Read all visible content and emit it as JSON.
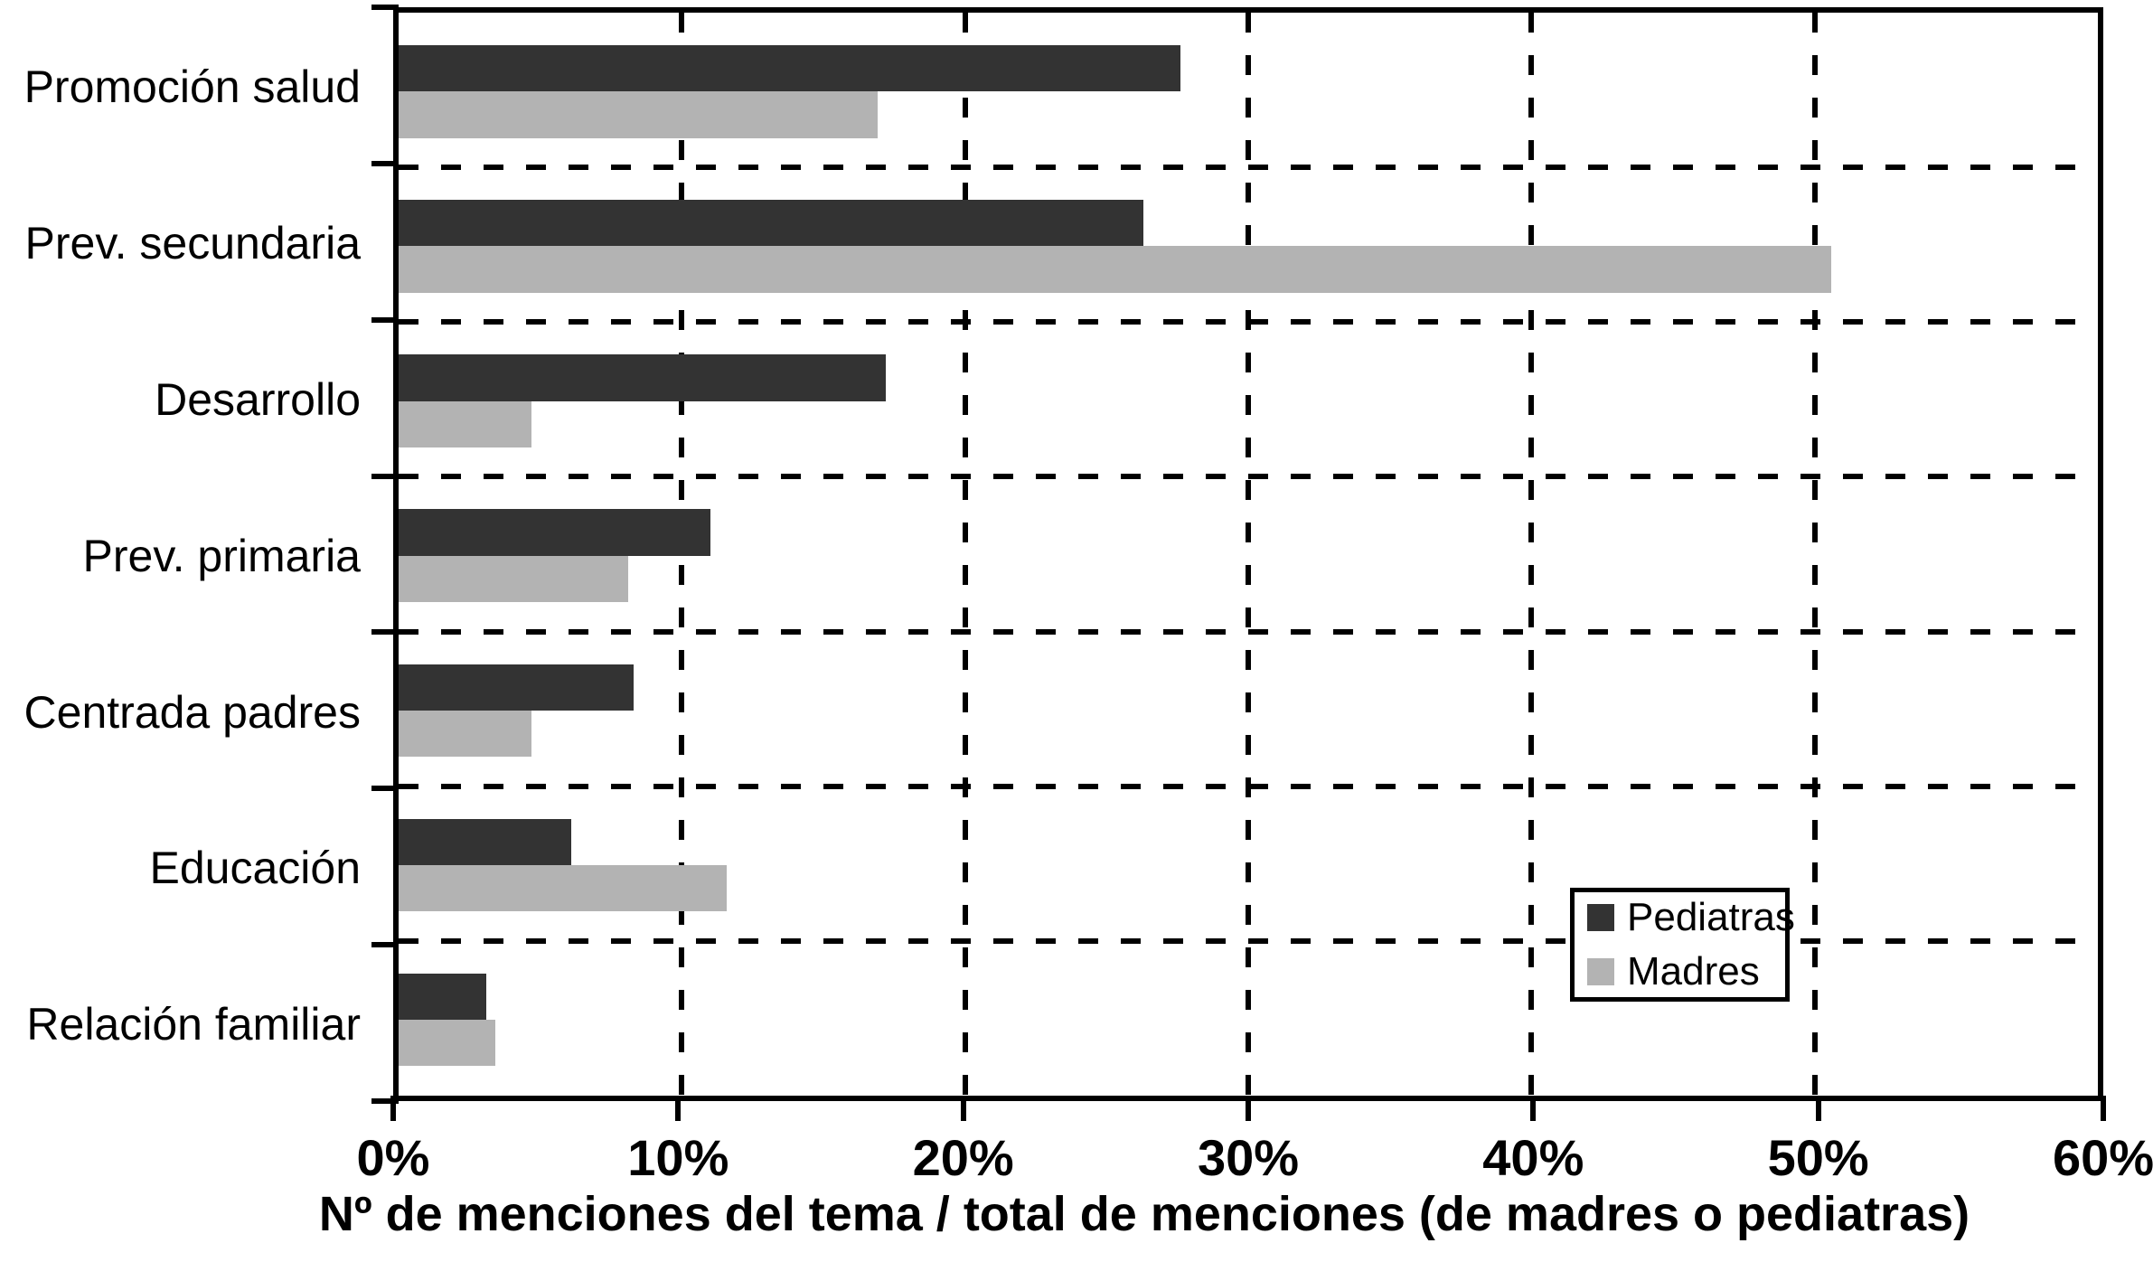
{
  "chart_data": {
    "type": "bar",
    "orientation": "horizontal",
    "categories": [
      "Promoción salud",
      "Prev. secundaria",
      "Desarrollo",
      "Prev. primaria",
      "Centrada padres",
      "Educación",
      "Relación familiar"
    ],
    "series": [
      {
        "name": "Pediatras",
        "color": "#333333",
        "values": [
          27.6,
          26.3,
          17.2,
          11.0,
          8.3,
          6.1,
          3.1
        ]
      },
      {
        "name": "Madres",
        "color": "#b3b3b3",
        "values": [
          16.9,
          50.6,
          4.7,
          8.1,
          4.7,
          11.6,
          3.4
        ]
      }
    ],
    "xlabel": "Nº de menciones del tema / total de menciones (de madres o pediatras)",
    "ylabel": "",
    "xlim": [
      0,
      60
    ],
    "xtick_labels": [
      "0%",
      "10%",
      "20%",
      "30%",
      "40%",
      "50%",
      "60%"
    ],
    "grid": "dashed, vertical at each 10% and horizontal at category boundaries",
    "legend_position": "bottom-right inside plot"
  },
  "legend": {
    "items": [
      {
        "label": "Pediatras",
        "color": "#333333"
      },
      {
        "label": "Madres",
        "color": "#b3b3b3"
      }
    ]
  }
}
